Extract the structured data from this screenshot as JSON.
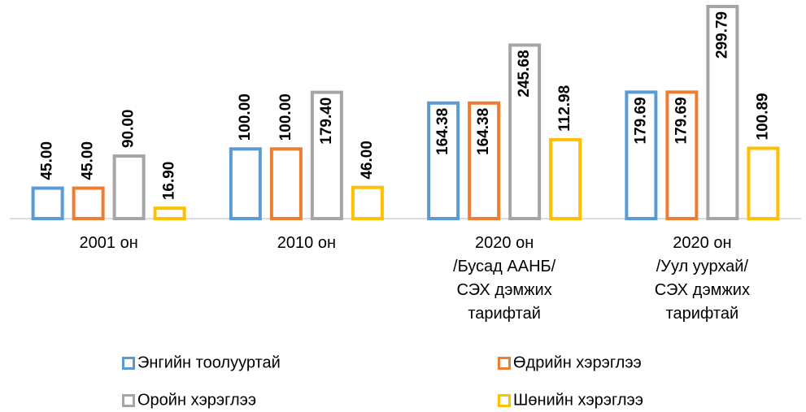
{
  "chart_data": {
    "type": "bar",
    "categories": [
      "2001 он",
      "2010 он",
      "2020 он\n/Бусад ААНБ/\nСЭХ дэмжих\nтарифтай",
      "2020 он\n/Уул уурхай/\nСЭХ дэмжих\nтарифтай"
    ],
    "series": [
      {
        "name": "Энгийн тоолууртай",
        "color": "#5b9bd5",
        "values": [
          45,
          100,
          164.38,
          179.69
        ],
        "value_labels": [
          "45.00",
          "100.00",
          "164.38",
          "179.69"
        ]
      },
      {
        "name": "Өдрийн хэрэглээ",
        "color": "#ed7d31",
        "values": [
          45,
          100,
          164.38,
          179.69
        ],
        "value_labels": [
          "45.00",
          "100.00",
          "164.38",
          "179.69"
        ]
      },
      {
        "name": "Оройн хэрэглээ",
        "color": "#a5a5a5",
        "values": [
          90,
          179.4,
          245.68,
          299.79
        ],
        "value_labels": [
          "90.00",
          "179.40",
          "245.68",
          "299.79"
        ]
      },
      {
        "name": "Шөнийн хэрэглээ",
        "color": "#ffc000",
        "values": [
          16.9,
          46,
          112.98,
          100.89
        ],
        "value_labels": [
          "16.90",
          "46.00",
          "112.98",
          "100.89"
        ]
      }
    ],
    "legend": "bottom"
  }
}
